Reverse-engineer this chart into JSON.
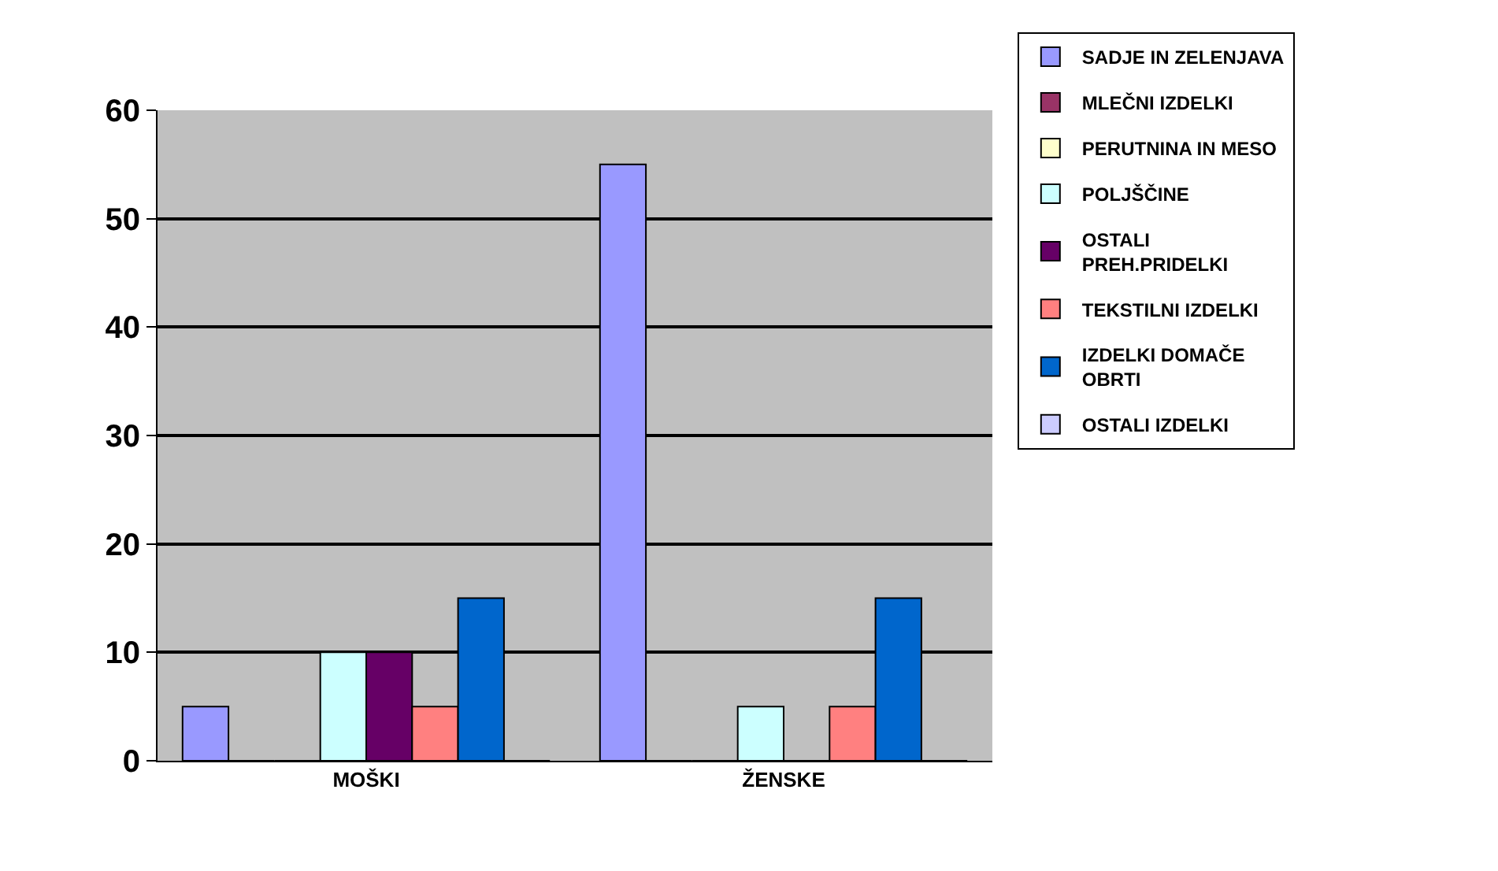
{
  "chart_data": {
    "type": "bar",
    "categories": [
      "MOŠKI",
      "ŽENSKE"
    ],
    "series": [
      {
        "name": "SADJE IN ZELENJAVA",
        "color": "#9999ff",
        "values": [
          5,
          55
        ]
      },
      {
        "name": "MLEČNI IZDELKI",
        "color": "#993366",
        "values": [
          0,
          0
        ]
      },
      {
        "name": "PERUTNINA IN MESO",
        "color": "#ffffcc",
        "values": [
          0,
          0
        ]
      },
      {
        "name": "POLJŠČINE",
        "color": "#ccffff",
        "values": [
          10,
          5
        ]
      },
      {
        "name": "OSTALI PREH.PRIDELKI",
        "color": "#660066",
        "values": [
          10,
          0
        ]
      },
      {
        "name": "TEKSTILNI IZDELKI",
        "color": "#ff8080",
        "values": [
          5,
          5
        ]
      },
      {
        "name": "IZDELKI DOMAČE OBRTI",
        "color": "#0066cc",
        "values": [
          15,
          15
        ]
      },
      {
        "name": "OSTALI IZDELKI",
        "color": "#ccccff",
        "values": [
          0,
          0
        ]
      }
    ],
    "ylim": [
      0,
      60
    ],
    "yticks": [
      0,
      10,
      20,
      30,
      40,
      50,
      60
    ],
    "grid": "y",
    "legend": "right"
  }
}
